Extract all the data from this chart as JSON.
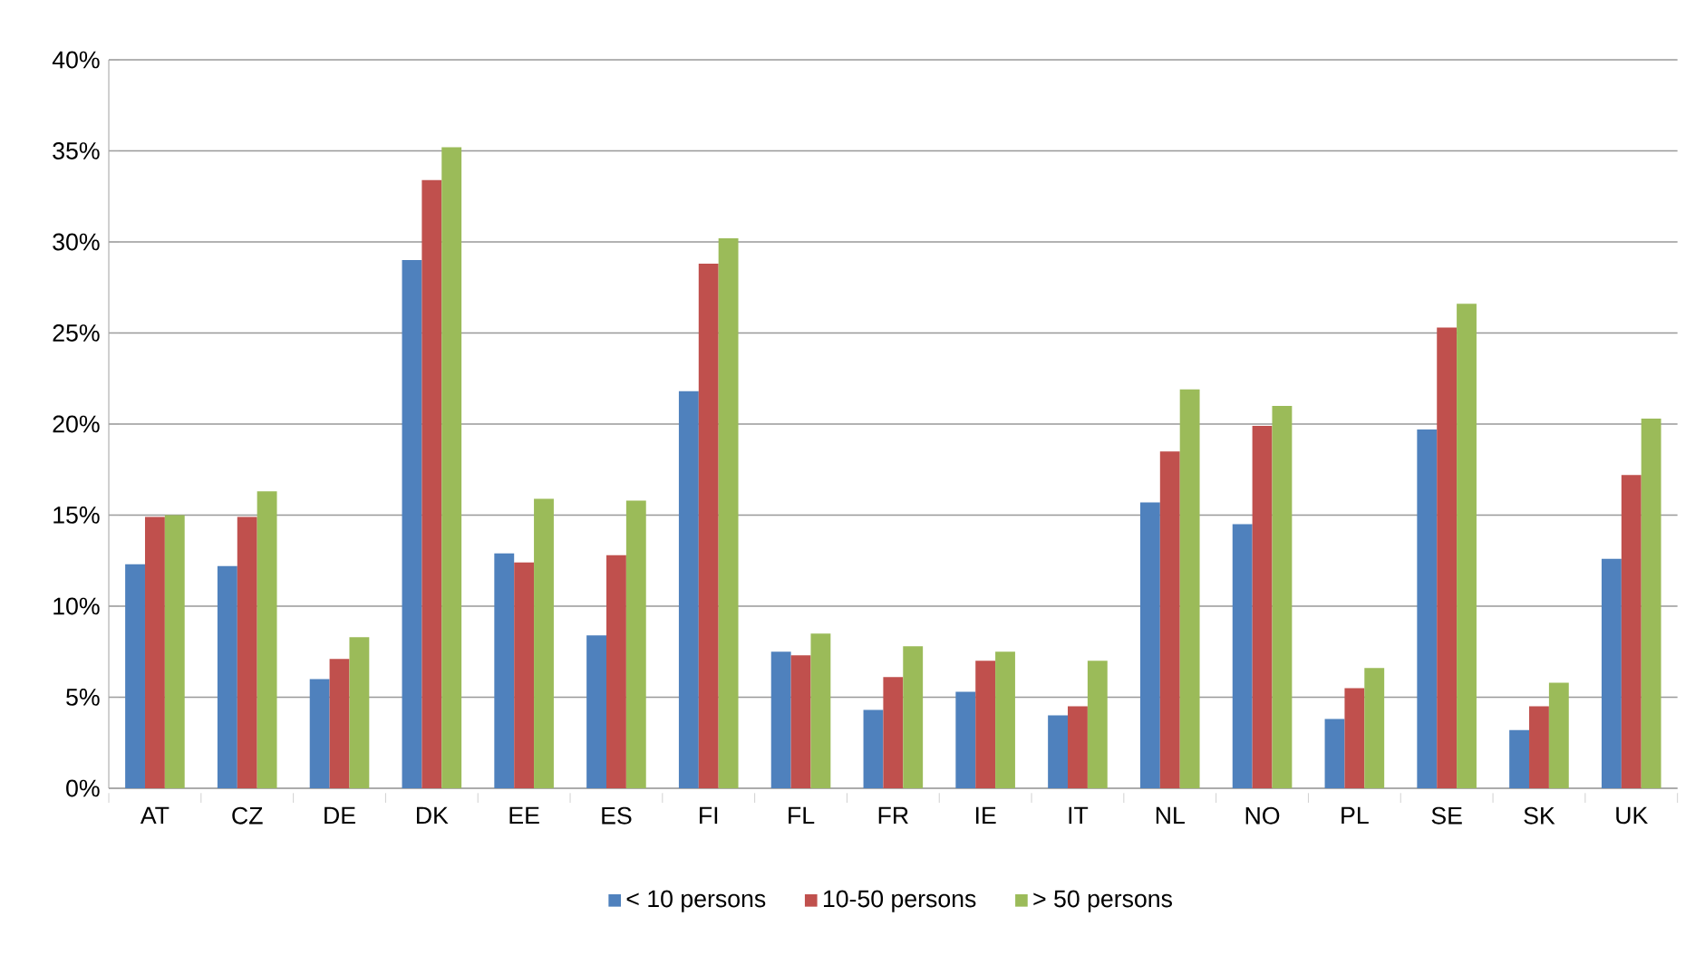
{
  "chart_data": {
    "type": "bar",
    "categories": [
      "AT",
      "CZ",
      "DE",
      "DK",
      "EE",
      "ES",
      "FI",
      "FL",
      "FR",
      "IE",
      "IT",
      "NL",
      "NO",
      "PL",
      "SE",
      "SK",
      "UK"
    ],
    "series": [
      {
        "name": "< 10 persons",
        "color": "#4f81bd",
        "values": [
          12.3,
          12.2,
          6.0,
          29.0,
          12.9,
          8.4,
          21.8,
          7.5,
          4.3,
          5.3,
          4.0,
          15.7,
          14.5,
          3.8,
          19.7,
          3.2,
          12.6
        ]
      },
      {
        "name": "10-50 persons",
        "color": "#c0504d",
        "values": [
          14.9,
          14.9,
          7.1,
          33.4,
          12.4,
          12.8,
          28.8,
          7.3,
          6.1,
          7.0,
          4.5,
          18.5,
          19.9,
          5.5,
          25.3,
          4.5,
          17.2
        ]
      },
      {
        "name": "> 50 persons",
        "color": "#9bbb59",
        "values": [
          15.0,
          16.3,
          8.3,
          35.2,
          15.9,
          15.8,
          30.2,
          8.5,
          7.8,
          7.5,
          7.0,
          21.9,
          21.0,
          6.6,
          26.6,
          5.8,
          20.3
        ]
      }
    ],
    "ylim": [
      0,
      40
    ],
    "yticks": [
      {
        "value": 0,
        "label": "0%"
      },
      {
        "value": 5,
        "label": "5%"
      },
      {
        "value": 10,
        "label": "10%"
      },
      {
        "value": 15,
        "label": "15%"
      },
      {
        "value": 20,
        "label": "20%"
      },
      {
        "value": 25,
        "label": "25%"
      },
      {
        "value": 30,
        "label": "30%"
      },
      {
        "value": 35,
        "label": "35%"
      },
      {
        "value": 40,
        "label": "40%"
      }
    ],
    "grid": "y",
    "legend": "bottom"
  }
}
